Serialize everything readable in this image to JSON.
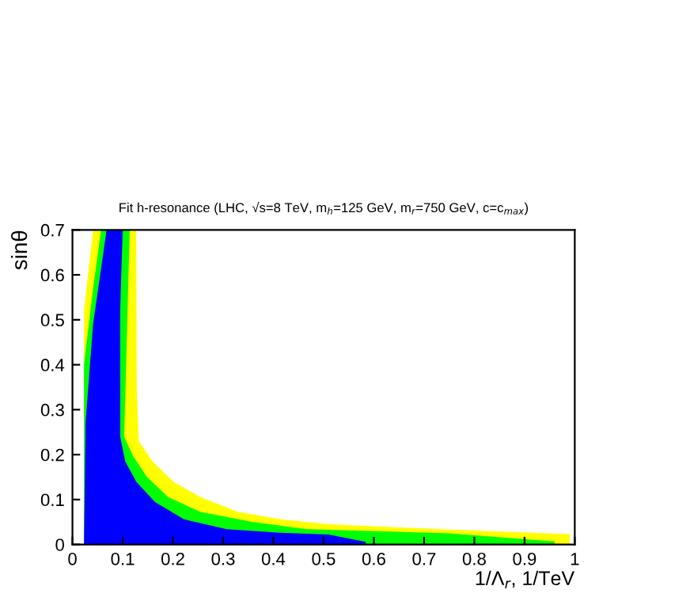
{
  "chart_data": {
    "type": "area",
    "title": "Fit h-resonance (LHC, √s=8 TeV, m$_{h}$=125 GeV, m$_{r}$=750 GeV, c=c$_{max}$)",
    "xlabel": "1/Λ$_{r}$, 1/TeV",
    "ylabel": "sinθ",
    "series": [
      {
        "color": "#ffff00",
        "x": [
          0.023,
          0.041,
          0.127,
          0.128,
          0.132,
          0.159,
          0.201,
          0.254,
          0.329,
          0.414,
          0.51,
          0.75,
          0.99
        ],
        "values": [
          0.52,
          0.7,
          0.7,
          0.35,
          0.23,
          0.185,
          0.14,
          0.106,
          0.073,
          0.056,
          0.045,
          0.033,
          0.023
        ]
      },
      {
        "color": "#00ff00",
        "x": [
          0.023,
          0.04,
          0.057,
          0.114,
          0.103,
          0.121,
          0.148,
          0.19,
          0.254,
          0.36,
          0.467,
          0.75,
          0.96
        ],
        "values": [
          0.4,
          0.56,
          0.7,
          0.7,
          0.24,
          0.196,
          0.151,
          0.106,
          0.073,
          0.05,
          0.034,
          0.025,
          0.007
        ]
      },
      {
        "color": "#0000ff",
        "x": [
          0.023,
          0.026,
          0.041,
          0.068,
          0.1,
          0.095,
          0.095,
          0.105,
          0.127,
          0.164,
          0.222,
          0.307,
          0.414,
          0.51,
          0.584
        ],
        "values": [
          0,
          0.27,
          0.49,
          0.7,
          0.7,
          0.52,
          0.24,
          0.185,
          0.14,
          0.095,
          0.056,
          0.034,
          0.026,
          0.022,
          0.006
        ]
      }
    ],
    "xlim": [
      0,
      1
    ],
    "ylim": [
      0,
      0.7
    ],
    "xticks": [
      0,
      0.1,
      0.2,
      0.3,
      0.4,
      0.5,
      0.6,
      0.7,
      0.8,
      0.9,
      1
    ],
    "yticks": [
      0,
      0.1,
      0.2,
      0.3,
      0.4,
      0.5,
      0.6,
      0.7
    ]
  }
}
